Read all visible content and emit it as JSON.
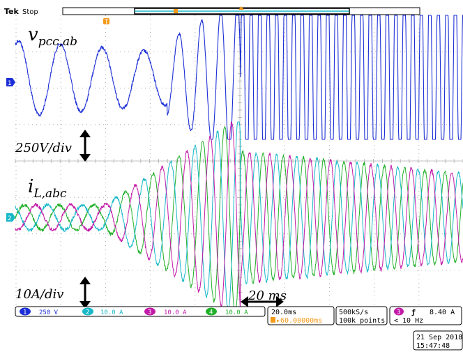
{
  "header": {
    "brand": "Tek",
    "state": "Stop"
  },
  "annotations": {
    "voltage_label_main": "v",
    "voltage_label_sub": "pcc,ab",
    "current_label_main": "i",
    "current_label_sub": "L,abc",
    "voltage_scale": "250V/div",
    "current_scale": "10A/div",
    "time_scale": "20 ms"
  },
  "channels": [
    {
      "num": "1",
      "scale": "250 V",
      "color": "#1c2fd6"
    },
    {
      "num": "2",
      "scale": "10.0 A",
      "color": "#16b8c8"
    },
    {
      "num": "3",
      "scale": "10.0 A",
      "color": "#c21aa8"
    },
    {
      "num": "4",
      "scale": "10.0 A",
      "color": "#22b02a"
    }
  ],
  "readouts": {
    "timebase": "20.0ms",
    "trigger_pos": "▸60.00000ms",
    "sample_rate": "500kS/s",
    "record_length": "100k points",
    "trigger_ch": "3",
    "trigger_slope": "ƒ",
    "trigger_level": "8.40 A",
    "trigger_freq": "< 10 Hz"
  },
  "timestamp": {
    "date": "21 Sep  2018",
    "time": "15:47:48"
  },
  "markers": {
    "trigger_marker": "T",
    "ch1_marker": "1",
    "ch2_marker": "2"
  },
  "colors": {
    "grid": "#b0b0b0",
    "blue": "#1c2fd6",
    "cyan": "#16b8c8",
    "magenta": "#c21aa8",
    "green": "#22b02a",
    "orange": "#f39a18"
  }
}
